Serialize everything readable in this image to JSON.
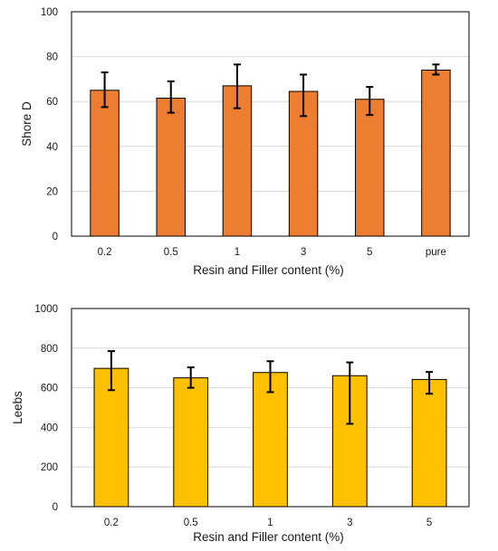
{
  "chart_data": [
    {
      "type": "bar",
      "categories": [
        "0.2",
        "0.5",
        "1",
        "3",
        "5",
        "pure"
      ],
      "values": [
        65,
        61.5,
        67,
        64.5,
        61,
        74
      ],
      "error_low": [
        57.5,
        55,
        57,
        53.5,
        54,
        72
      ],
      "error_high": [
        73,
        69,
        76.5,
        72,
        66.5,
        76.5
      ],
      "xlabel": "Resin  and Filler content (%)",
      "ylabel": "Shore D",
      "ylim": [
        0,
        100
      ],
      "yticks": [
        "0",
        "20",
        "40",
        "60",
        "80",
        "100"
      ],
      "grid": true,
      "bar_color": "#ed7d31"
    },
    {
      "type": "bar",
      "categories": [
        "0.2",
        "0.5",
        "1",
        "3",
        "5"
      ],
      "values": [
        698,
        650,
        677,
        661,
        642
      ],
      "error_low": [
        588,
        600,
        578,
        418,
        570
      ],
      "error_high": [
        785,
        703,
        734,
        728,
        680
      ],
      "xlabel": "Resin and Filler content (%)",
      "ylabel": "Leebs",
      "ylim": [
        0,
        1000
      ],
      "yticks": [
        "0",
        "200",
        "400",
        "600",
        "800",
        "1000"
      ],
      "grid": true,
      "bar_color": "#ffc000"
    }
  ]
}
